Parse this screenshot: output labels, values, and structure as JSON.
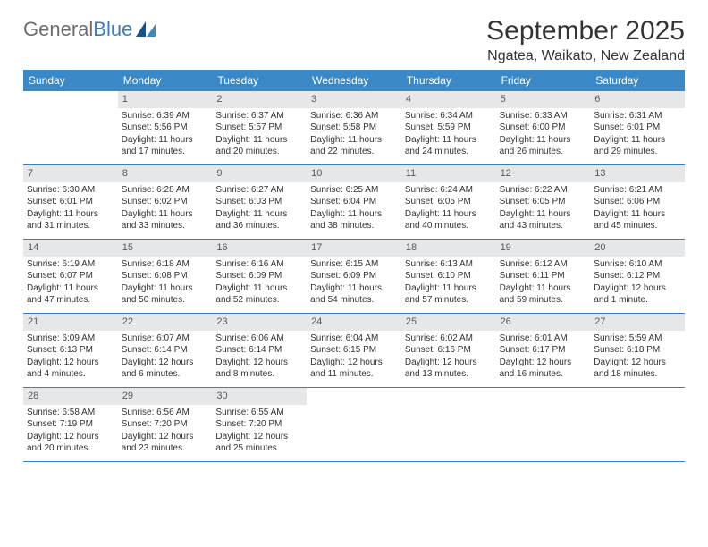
{
  "logo": {
    "text1": "General",
    "text2": "Blue"
  },
  "title": "September 2025",
  "location": "Ngatea, Waikato, New Zealand",
  "colors": {
    "header_bg": "#3a88c6",
    "header_text": "#ffffff",
    "daynum_bg": "#e6e7e8",
    "daynum_text": "#58595b",
    "row_border": "#3a7ebf",
    "body_text": "#333333",
    "logo_gray": "#6d6e71",
    "logo_blue": "#3a7ebf"
  },
  "day_headers": [
    "Sunday",
    "Monday",
    "Tuesday",
    "Wednesday",
    "Thursday",
    "Friday",
    "Saturday"
  ],
  "weeks": [
    [
      {
        "n": "",
        "sr": "",
        "ss": "",
        "dl1": "",
        "dl2": ""
      },
      {
        "n": "1",
        "sr": "Sunrise: 6:39 AM",
        "ss": "Sunset: 5:56 PM",
        "dl1": "Daylight: 11 hours",
        "dl2": "and 17 minutes."
      },
      {
        "n": "2",
        "sr": "Sunrise: 6:37 AM",
        "ss": "Sunset: 5:57 PM",
        "dl1": "Daylight: 11 hours",
        "dl2": "and 20 minutes."
      },
      {
        "n": "3",
        "sr": "Sunrise: 6:36 AM",
        "ss": "Sunset: 5:58 PM",
        "dl1": "Daylight: 11 hours",
        "dl2": "and 22 minutes."
      },
      {
        "n": "4",
        "sr": "Sunrise: 6:34 AM",
        "ss": "Sunset: 5:59 PM",
        "dl1": "Daylight: 11 hours",
        "dl2": "and 24 minutes."
      },
      {
        "n": "5",
        "sr": "Sunrise: 6:33 AM",
        "ss": "Sunset: 6:00 PM",
        "dl1": "Daylight: 11 hours",
        "dl2": "and 26 minutes."
      },
      {
        "n": "6",
        "sr": "Sunrise: 6:31 AM",
        "ss": "Sunset: 6:01 PM",
        "dl1": "Daylight: 11 hours",
        "dl2": "and 29 minutes."
      }
    ],
    [
      {
        "n": "7",
        "sr": "Sunrise: 6:30 AM",
        "ss": "Sunset: 6:01 PM",
        "dl1": "Daylight: 11 hours",
        "dl2": "and 31 minutes."
      },
      {
        "n": "8",
        "sr": "Sunrise: 6:28 AM",
        "ss": "Sunset: 6:02 PM",
        "dl1": "Daylight: 11 hours",
        "dl2": "and 33 minutes."
      },
      {
        "n": "9",
        "sr": "Sunrise: 6:27 AM",
        "ss": "Sunset: 6:03 PM",
        "dl1": "Daylight: 11 hours",
        "dl2": "and 36 minutes."
      },
      {
        "n": "10",
        "sr": "Sunrise: 6:25 AM",
        "ss": "Sunset: 6:04 PM",
        "dl1": "Daylight: 11 hours",
        "dl2": "and 38 minutes."
      },
      {
        "n": "11",
        "sr": "Sunrise: 6:24 AM",
        "ss": "Sunset: 6:05 PM",
        "dl1": "Daylight: 11 hours",
        "dl2": "and 40 minutes."
      },
      {
        "n": "12",
        "sr": "Sunrise: 6:22 AM",
        "ss": "Sunset: 6:05 PM",
        "dl1": "Daylight: 11 hours",
        "dl2": "and 43 minutes."
      },
      {
        "n": "13",
        "sr": "Sunrise: 6:21 AM",
        "ss": "Sunset: 6:06 PM",
        "dl1": "Daylight: 11 hours",
        "dl2": "and 45 minutes."
      }
    ],
    [
      {
        "n": "14",
        "sr": "Sunrise: 6:19 AM",
        "ss": "Sunset: 6:07 PM",
        "dl1": "Daylight: 11 hours",
        "dl2": "and 47 minutes."
      },
      {
        "n": "15",
        "sr": "Sunrise: 6:18 AM",
        "ss": "Sunset: 6:08 PM",
        "dl1": "Daylight: 11 hours",
        "dl2": "and 50 minutes."
      },
      {
        "n": "16",
        "sr": "Sunrise: 6:16 AM",
        "ss": "Sunset: 6:09 PM",
        "dl1": "Daylight: 11 hours",
        "dl2": "and 52 minutes."
      },
      {
        "n": "17",
        "sr": "Sunrise: 6:15 AM",
        "ss": "Sunset: 6:09 PM",
        "dl1": "Daylight: 11 hours",
        "dl2": "and 54 minutes."
      },
      {
        "n": "18",
        "sr": "Sunrise: 6:13 AM",
        "ss": "Sunset: 6:10 PM",
        "dl1": "Daylight: 11 hours",
        "dl2": "and 57 minutes."
      },
      {
        "n": "19",
        "sr": "Sunrise: 6:12 AM",
        "ss": "Sunset: 6:11 PM",
        "dl1": "Daylight: 11 hours",
        "dl2": "and 59 minutes."
      },
      {
        "n": "20",
        "sr": "Sunrise: 6:10 AM",
        "ss": "Sunset: 6:12 PM",
        "dl1": "Daylight: 12 hours",
        "dl2": "and 1 minute."
      }
    ],
    [
      {
        "n": "21",
        "sr": "Sunrise: 6:09 AM",
        "ss": "Sunset: 6:13 PM",
        "dl1": "Daylight: 12 hours",
        "dl2": "and 4 minutes."
      },
      {
        "n": "22",
        "sr": "Sunrise: 6:07 AM",
        "ss": "Sunset: 6:14 PM",
        "dl1": "Daylight: 12 hours",
        "dl2": "and 6 minutes."
      },
      {
        "n": "23",
        "sr": "Sunrise: 6:06 AM",
        "ss": "Sunset: 6:14 PM",
        "dl1": "Daylight: 12 hours",
        "dl2": "and 8 minutes."
      },
      {
        "n": "24",
        "sr": "Sunrise: 6:04 AM",
        "ss": "Sunset: 6:15 PM",
        "dl1": "Daylight: 12 hours",
        "dl2": "and 11 minutes."
      },
      {
        "n": "25",
        "sr": "Sunrise: 6:02 AM",
        "ss": "Sunset: 6:16 PM",
        "dl1": "Daylight: 12 hours",
        "dl2": "and 13 minutes."
      },
      {
        "n": "26",
        "sr": "Sunrise: 6:01 AM",
        "ss": "Sunset: 6:17 PM",
        "dl1": "Daylight: 12 hours",
        "dl2": "and 16 minutes."
      },
      {
        "n": "27",
        "sr": "Sunrise: 5:59 AM",
        "ss": "Sunset: 6:18 PM",
        "dl1": "Daylight: 12 hours",
        "dl2": "and 18 minutes."
      }
    ],
    [
      {
        "n": "28",
        "sr": "Sunrise: 6:58 AM",
        "ss": "Sunset: 7:19 PM",
        "dl1": "Daylight: 12 hours",
        "dl2": "and 20 minutes."
      },
      {
        "n": "29",
        "sr": "Sunrise: 6:56 AM",
        "ss": "Sunset: 7:20 PM",
        "dl1": "Daylight: 12 hours",
        "dl2": "and 23 minutes."
      },
      {
        "n": "30",
        "sr": "Sunrise: 6:55 AM",
        "ss": "Sunset: 7:20 PM",
        "dl1": "Daylight: 12 hours",
        "dl2": "and 25 minutes."
      },
      {
        "n": "",
        "sr": "",
        "ss": "",
        "dl1": "",
        "dl2": ""
      },
      {
        "n": "",
        "sr": "",
        "ss": "",
        "dl1": "",
        "dl2": ""
      },
      {
        "n": "",
        "sr": "",
        "ss": "",
        "dl1": "",
        "dl2": ""
      },
      {
        "n": "",
        "sr": "",
        "ss": "",
        "dl1": "",
        "dl2": ""
      }
    ]
  ]
}
